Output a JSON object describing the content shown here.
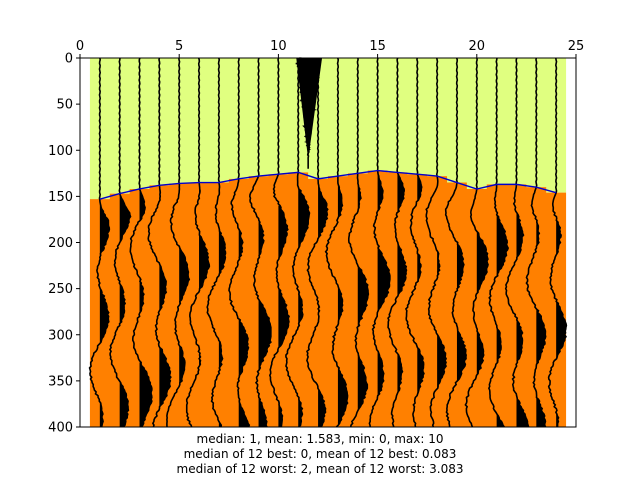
{
  "chart_data": {
    "type": "seismic-wiggle",
    "title": "",
    "xlabel": "",
    "ylabel": "",
    "xlim": [
      0,
      25
    ],
    "ylim": [
      400,
      0
    ],
    "x_ticks": [
      "0",
      "5",
      "10",
      "15",
      "20",
      "25"
    ],
    "y_ticks": [
      "0",
      "50",
      "100",
      "150",
      "200",
      "250",
      "300",
      "350",
      "400"
    ],
    "traces_x": [
      1,
      2,
      3,
      4,
      5,
      6,
      7,
      8,
      9,
      10,
      11,
      12,
      13,
      14,
      15,
      16,
      17,
      18,
      19,
      20,
      21,
      22,
      23,
      24
    ],
    "picks": [
      153,
      147,
      142,
      138,
      136,
      135,
      135,
      131,
      128,
      126,
      124,
      131,
      128,
      125,
      122,
      124,
      126,
      128,
      135,
      142,
      137,
      137,
      140,
      146
    ],
    "region_bounds_x": [
      0.5,
      24.5
    ],
    "noise_trace_x": 11.5,
    "colors": {
      "above_first_break": "#e0ff80",
      "below_first_break": "#ff8000",
      "wiggle": "#000000",
      "pick_line": "#0000cc"
    }
  },
  "stats": {
    "line1": "median: 1,   mean: 1.583,   min: 0,   max: 10",
    "line2": "median of 12 best: 0,   mean of 12 best: 0.083",
    "line3": "median of 12 worst: 2,    mean of 12 worst: 3.083"
  }
}
